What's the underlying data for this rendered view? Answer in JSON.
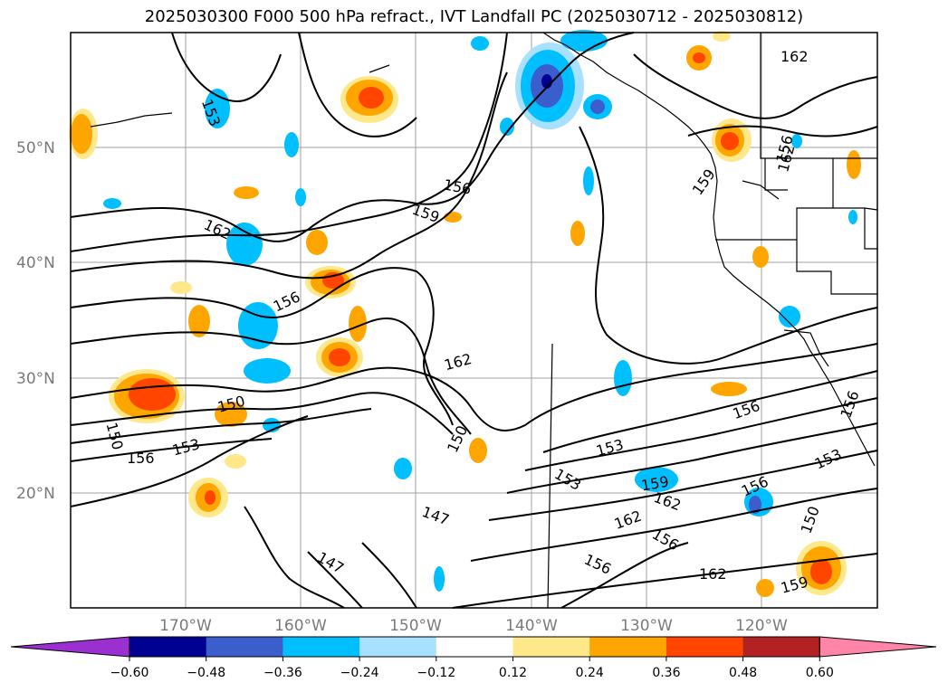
{
  "title": "2025030300 F000 500 hPa refract., IVT Landfall PC (2025030712 - 2025030812)",
  "lat_labels": [
    "50°N",
    "40°N",
    "30°N",
    "20°N"
  ],
  "lon_labels": [
    "170°W",
    "160°W",
    "150°W",
    "140°W",
    "130°W",
    "120°W"
  ],
  "colorbar": {
    "ticks": [
      "−0.60",
      "−0.48",
      "−0.36",
      "−0.24",
      "−0.12",
      "0.12",
      "0.24",
      "0.36",
      "0.48",
      "0.60"
    ],
    "colors": [
      "#9b30d0",
      "#000090",
      "#3a5fcd",
      "#00bfff",
      "#a8e0ff",
      "#ffffff",
      "#ffe88a",
      "#ffa500",
      "#ff4500",
      "#b22222",
      "#ff85a8"
    ]
  },
  "contour_labels": [
    "162",
    "153",
    "156",
    "159",
    "162",
    "159",
    "156",
    "162",
    "156",
    "162",
    "150",
    "150",
    "156",
    "153",
    "150",
    "153",
    "159",
    "162",
    "156",
    "147",
    "162",
    "156",
    "156",
    "162",
    "147",
    "150",
    "159",
    "153",
    "156",
    "156",
    "153"
  ],
  "colors": {
    "land_line": "#000000",
    "grid": "#a0a0a0",
    "contour": "#000000"
  }
}
